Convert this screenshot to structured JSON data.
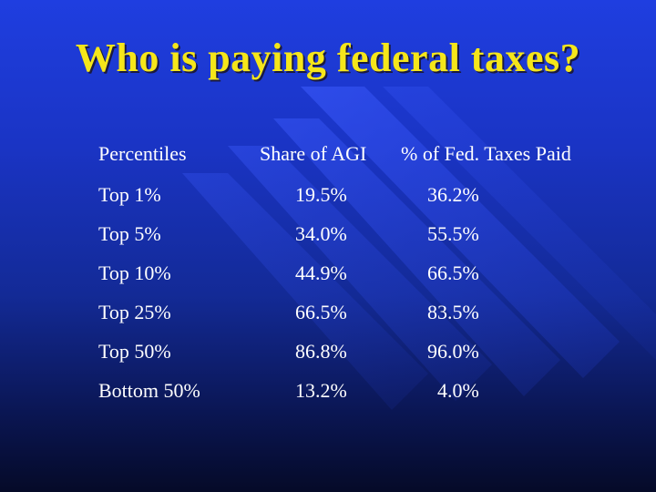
{
  "slide": {
    "title": "Who is paying federal taxes?"
  },
  "table": {
    "headers": [
      "Percentiles",
      "Share of AGI",
      "% of Fed. Taxes Paid"
    ],
    "rows": [
      {
        "percentile": "Top 1%",
        "share_agi": "19.5%",
        "taxes_paid": "36.2%"
      },
      {
        "percentile": "Top 5%",
        "share_agi": "34.0%",
        "taxes_paid": "55.5%"
      },
      {
        "percentile": "Top 10%",
        "share_agi": "44.9%",
        "taxes_paid": "66.5%"
      },
      {
        "percentile": "Top 25%",
        "share_agi": "66.5%",
        "taxes_paid": "83.5%"
      },
      {
        "percentile": "Top 50%",
        "share_agi": "86.8%",
        "taxes_paid": "96.0%"
      },
      {
        "percentile": "Bottom 50%",
        "share_agi": "13.2%",
        "taxes_paid": "  4.0%"
      }
    ]
  },
  "colors": {
    "title": "#f5e61a",
    "text": "#ffffff",
    "background_top": "#1f3ee0",
    "background_bottom": "#050a28"
  }
}
